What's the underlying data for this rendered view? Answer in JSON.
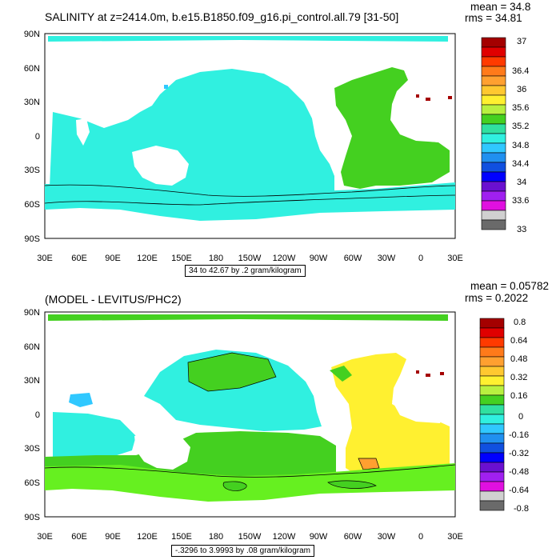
{
  "panels": [
    {
      "title": "SALINITY at z=2414.0m, b.e15.B1850.f09_g16.pi_control.all.79 [31-50]",
      "mean_label": "mean = 34.8",
      "rms_label": "rms = 34.81",
      "footer": "34 to 42.67 by .2 gram/kilogram",
      "lat_labels": [
        "90N",
        "60N",
        "30N",
        "0",
        "30S",
        "60S",
        "90S"
      ],
      "lon_labels": [
        "30E",
        "60E",
        "90E",
        "120E",
        "150E",
        "180",
        "150W",
        "120W",
        "90W",
        "60W",
        "30W",
        "0",
        "30E"
      ],
      "colorbar": {
        "labels": [
          "37",
          "36.4",
          "36",
          "35.6",
          "35.2",
          "34.8",
          "34.4",
          "34",
          "33.6",
          "33"
        ],
        "colors": [
          "#a40000",
          "#e00000",
          "#ff3a00",
          "#ff7a1a",
          "#ffa030",
          "#ffc830",
          "#fff030",
          "#b8f040",
          "#44d020",
          "#30e0a0",
          "#30f0e0",
          "#30c8ff",
          "#2090f0",
          "#1050e0",
          "#0000ff",
          "#6a10d0",
          "#a020f0",
          "#e010e0",
          "#d0d0d0",
          "#6a6a6a"
        ]
      }
    },
    {
      "title": "(MODEL - LEVITUS/PHC2)",
      "mean_label": "mean = 0.05782",
      "rms_label": "rms = 0.2022",
      "footer": "-.3296 to 3.9993 by .08 gram/kilogram",
      "lat_labels": [
        "90N",
        "60N",
        "30N",
        "0",
        "30S",
        "60S",
        "90S"
      ],
      "lon_labels": [
        "30E",
        "60E",
        "90E",
        "120E",
        "150E",
        "180",
        "150W",
        "120W",
        "90W",
        "60W",
        "30W",
        "0",
        "30E"
      ],
      "colorbar": {
        "labels": [
          "0.8",
          "0.64",
          "0.48",
          "0.32",
          "0.16",
          "0",
          "-0.16",
          "-0.32",
          "-0.48",
          "-0.64",
          "-0.8"
        ],
        "colors": [
          "#a40000",
          "#e00000",
          "#ff3a00",
          "#ff7a1a",
          "#ffa030",
          "#ffc830",
          "#fff030",
          "#b8f040",
          "#44d020",
          "#30e0a0",
          "#30f0e0",
          "#30c8ff",
          "#2090f0",
          "#1050e0",
          "#0000ff",
          "#6a10d0",
          "#a020f0",
          "#e010e0",
          "#d0d0d0",
          "#6a6a6a"
        ]
      }
    }
  ],
  "colors": {
    "cyan": "#30f0e0",
    "green": "#44d020",
    "yellow": "#fff030",
    "bright_green": "#66f020",
    "light_blue": "#30c8ff",
    "dark_red": "#a40000",
    "orange": "#ffa030"
  }
}
